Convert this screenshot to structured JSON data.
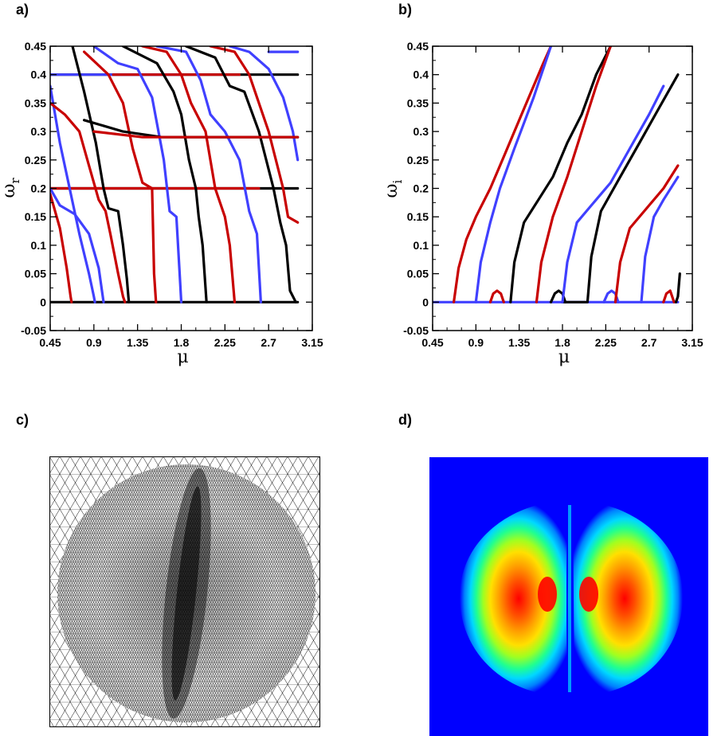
{
  "panels": {
    "a": "a)",
    "b": "b)",
    "c": "c)",
    "d": "d)"
  },
  "colors": {
    "black": "#000000",
    "red": "#c80000",
    "blue": "#4040ff",
    "field_bg": "#0000ff"
  },
  "chart_data": [
    {
      "panel": "a",
      "type": "line",
      "xlabel": "μ",
      "ylabel_base": "ω",
      "ylabel_sub": "r",
      "xlim": [
        0.45,
        3.15
      ],
      "ylim": [
        -0.05,
        0.45
      ],
      "xticks": [
        "0.45",
        "0.9",
        "1.35",
        "1.8",
        "2.25",
        "2.7",
        "3.15"
      ],
      "yticks": [
        "-0.05",
        "0",
        "0.05",
        "0.1",
        "0.15",
        "0.2",
        "0.25",
        "0.3",
        "0.35",
        "0.4",
        "0.45"
      ],
      "series": [
        {
          "color": "black",
          "points": [
            [
              0.45,
              0.0
            ],
            [
              3.0,
              0.0
            ]
          ]
        },
        {
          "color": "black",
          "points": [
            [
              0.45,
              0.2
            ],
            [
              3.0,
              0.2
            ]
          ]
        },
        {
          "color": "black",
          "points": [
            [
              0.45,
              0.4
            ],
            [
              3.0,
              0.4
            ]
          ]
        },
        {
          "color": "red",
          "points": [
            [
              0.45,
              0.2
            ],
            [
              1.2,
              0.2
            ],
            [
              2.6,
              0.2
            ]
          ]
        },
        {
          "color": "blue",
          "points": [
            [
              0.45,
              0.4
            ],
            [
              1.8,
              0.4
            ]
          ]
        },
        {
          "color": "red",
          "points": [
            [
              1.1,
              0.4
            ],
            [
              2.4,
              0.4
            ]
          ]
        },
        {
          "color": "red",
          "points": [
            [
              0.45,
              0.19
            ],
            [
              0.55,
              0.13
            ],
            [
              0.62,
              0.06
            ],
            [
              0.66,
              0.01
            ],
            [
              0.67,
              0.0
            ]
          ]
        },
        {
          "color": "blue",
          "points": [
            [
              0.45,
              0.38
            ],
            [
              0.55,
              0.28
            ],
            [
              0.65,
              0.2
            ],
            [
              0.75,
              0.12
            ],
            [
              0.85,
              0.05
            ],
            [
              0.9,
              0.01
            ],
            [
              0.91,
              0.0
            ]
          ]
        },
        {
          "color": "red",
          "points": [
            [
              0.45,
              0.35
            ],
            [
              0.6,
              0.33
            ],
            [
              0.75,
              0.3
            ],
            [
              0.85,
              0.24
            ],
            [
              0.95,
              0.18
            ],
            [
              1.02,
              0.16
            ],
            [
              1.07,
              0.12
            ],
            [
              1.15,
              0.05
            ],
            [
              1.2,
              0.01
            ],
            [
              1.22,
              0.0
            ]
          ]
        },
        {
          "color": "black",
          "points": [
            [
              0.68,
              0.45
            ],
            [
              0.8,
              0.37
            ],
            [
              0.92,
              0.28
            ],
            [
              1.0,
              0.2
            ],
            [
              1.05,
              0.165
            ],
            [
              1.15,
              0.16
            ],
            [
              1.2,
              0.1
            ],
            [
              1.24,
              0.04
            ],
            [
              1.26,
              0.0
            ]
          ]
        },
        {
          "color": "blue",
          "points": [
            [
              0.45,
              0.2
            ],
            [
              0.55,
              0.17
            ],
            [
              0.7,
              0.155
            ],
            [
              0.85,
              0.12
            ],
            [
              0.95,
              0.06
            ],
            [
              1.0,
              0.0
            ]
          ]
        },
        {
          "color": "red",
          "points": [
            [
              0.8,
              0.44
            ],
            [
              1.05,
              0.4
            ],
            [
              1.2,
              0.35
            ],
            [
              1.3,
              0.27
            ],
            [
              1.4,
              0.21
            ],
            [
              1.5,
              0.2
            ],
            [
              1.52,
              0.05
            ],
            [
              1.54,
              0.0
            ]
          ]
        },
        {
          "color": "blue",
          "points": [
            [
              0.9,
              0.45
            ],
            [
              1.15,
              0.42
            ],
            [
              1.35,
              0.41
            ],
            [
              1.5,
              0.36
            ],
            [
              1.62,
              0.25
            ],
            [
              1.68,
              0.16
            ],
            [
              1.75,
              0.15
            ],
            [
              1.78,
              0.06
            ],
            [
              1.8,
              0.0
            ]
          ]
        },
        {
          "color": "black",
          "points": [
            [
              1.2,
              0.45
            ],
            [
              1.55,
              0.42
            ],
            [
              1.72,
              0.37
            ],
            [
              1.8,
              0.33
            ],
            [
              1.88,
              0.25
            ],
            [
              1.95,
              0.2
            ],
            [
              1.98,
              0.15
            ],
            [
              2.02,
              0.1
            ],
            [
              2.06,
              0.0
            ]
          ]
        },
        {
          "color": "red",
          "points": [
            [
              1.4,
              0.45
            ],
            [
              1.65,
              0.44
            ],
            [
              1.8,
              0.4
            ],
            [
              1.9,
              0.35
            ],
            [
              2.05,
              0.3
            ],
            [
              2.15,
              0.2
            ],
            [
              2.25,
              0.15
            ],
            [
              2.3,
              0.1
            ],
            [
              2.35,
              0.0
            ]
          ]
        },
        {
          "color": "blue",
          "points": [
            [
              1.55,
              0.45
            ],
            [
              1.85,
              0.44
            ],
            [
              2.0,
              0.39
            ],
            [
              2.1,
              0.33
            ],
            [
              2.25,
              0.3
            ],
            [
              2.4,
              0.25
            ],
            [
              2.5,
              0.16
            ],
            [
              2.58,
              0.12
            ],
            [
              2.62,
              0.0
            ]
          ]
        },
        {
          "color": "black",
          "points": [
            [
              1.85,
              0.45
            ],
            [
              2.15,
              0.43
            ],
            [
              2.3,
              0.38
            ],
            [
              2.45,
              0.37
            ],
            [
              2.6,
              0.3
            ],
            [
              2.75,
              0.2
            ],
            [
              2.82,
              0.14
            ],
            [
              2.88,
              0.1
            ],
            [
              2.92,
              0.02
            ],
            [
              2.98,
              0.0
            ]
          ]
        },
        {
          "color": "red",
          "points": [
            [
              2.1,
              0.45
            ],
            [
              2.35,
              0.44
            ],
            [
              2.5,
              0.4
            ],
            [
              2.7,
              0.3
            ],
            [
              2.85,
              0.2
            ],
            [
              2.9,
              0.15
            ],
            [
              3.0,
              0.14
            ]
          ]
        },
        {
          "color": "blue",
          "points": [
            [
              2.3,
              0.45
            ],
            [
              2.5,
              0.44
            ],
            [
              2.7,
              0.41
            ],
            [
              2.85,
              0.36
            ],
            [
              2.95,
              0.3
            ],
            [
              3.0,
              0.25
            ]
          ]
        },
        {
          "color": "black",
          "points": [
            [
              0.8,
              0.32
            ],
            [
              1.2,
              0.3
            ],
            [
              1.6,
              0.29
            ],
            [
              2.0,
              0.29
            ],
            [
              2.4,
              0.29
            ],
            [
              3.0,
              0.29
            ]
          ]
        },
        {
          "color": "red",
          "points": [
            [
              0.9,
              0.3
            ],
            [
              1.4,
              0.29
            ],
            [
              2.0,
              0.29
            ],
            [
              3.0,
              0.29
            ]
          ]
        },
        {
          "color": "blue",
          "points": [
            [
              2.7,
              0.44
            ],
            [
              3.0,
              0.44
            ]
          ]
        }
      ]
    },
    {
      "panel": "b",
      "type": "line",
      "xlabel": "μ",
      "ylabel_base": "ω",
      "ylabel_sub": "i",
      "xlim": [
        0.45,
        3.15
      ],
      "ylim": [
        -0.05,
        0.45
      ],
      "xticks": [
        "0.45",
        "0.9",
        "1.35",
        "1.8",
        "2.25",
        "2.7",
        "3.15"
      ],
      "yticks": [
        "-0.05",
        "0",
        "0.05",
        "0.1",
        "0.15",
        "0.2",
        "0.25",
        "0.3",
        "0.35",
        "0.4",
        "0.45"
      ],
      "series": [
        {
          "color": "blue",
          "points": [
            [
              0.45,
              0.0
            ],
            [
              3.0,
              0.0
            ]
          ]
        },
        {
          "color": "red",
          "points": [
            [
              0.67,
              0.0
            ],
            [
              0.72,
              0.06
            ],
            [
              0.8,
              0.11
            ],
            [
              0.9,
              0.15
            ],
            [
              1.05,
              0.2
            ],
            [
              1.2,
              0.26
            ],
            [
              1.4,
              0.34
            ],
            [
              1.6,
              0.42
            ],
            [
              1.68,
              0.45
            ]
          ]
        },
        {
          "color": "blue",
          "points": [
            [
              0.9,
              0.0
            ],
            [
              0.95,
              0.07
            ],
            [
              1.05,
              0.14
            ],
            [
              1.15,
              0.2
            ],
            [
              1.3,
              0.27
            ],
            [
              1.5,
              0.36
            ],
            [
              1.68,
              0.45
            ]
          ]
        },
        {
          "color": "red",
          "points": [
            [
              1.05,
              0.0
            ],
            [
              1.08,
              0.015
            ],
            [
              1.12,
              0.02
            ],
            [
              1.16,
              0.015
            ],
            [
              1.19,
              0.0
            ]
          ]
        },
        {
          "color": "black",
          "points": [
            [
              1.26,
              0.0
            ],
            [
              1.3,
              0.07
            ],
            [
              1.4,
              0.14
            ],
            [
              1.55,
              0.18
            ],
            [
              1.7,
              0.22
            ],
            [
              1.85,
              0.28
            ],
            [
              2.0,
              0.33
            ],
            [
              2.15,
              0.4
            ],
            [
              2.3,
              0.45
            ]
          ]
        },
        {
          "color": "red",
          "points": [
            [
              1.53,
              0.0
            ],
            [
              1.58,
              0.07
            ],
            [
              1.7,
              0.15
            ],
            [
              1.85,
              0.22
            ],
            [
              2.0,
              0.3
            ],
            [
              2.15,
              0.38
            ],
            [
              2.3,
              0.45
            ]
          ]
        },
        {
          "color": "black",
          "points": [
            [
              1.68,
              0.0
            ],
            [
              1.72,
              0.015
            ],
            [
              1.76,
              0.02
            ],
            [
              1.8,
              0.015
            ],
            [
              1.83,
              0.0
            ]
          ]
        },
        {
          "color": "black",
          "points": [
            [
              1.8,
              0.0
            ],
            [
              2.06,
              0.0
            ],
            [
              2.1,
              0.08
            ],
            [
              2.2,
              0.16
            ],
            [
              2.4,
              0.22
            ],
            [
              2.6,
              0.28
            ],
            [
              2.8,
              0.34
            ],
            [
              3.0,
              0.4
            ]
          ]
        },
        {
          "color": "blue",
          "points": [
            [
              1.8,
              0.0
            ],
            [
              1.85,
              0.07
            ],
            [
              1.95,
              0.14
            ],
            [
              2.1,
              0.17
            ],
            [
              2.3,
              0.21
            ],
            [
              2.5,
              0.27
            ],
            [
              2.7,
              0.33
            ],
            [
              2.85,
              0.38
            ]
          ]
        },
        {
          "color": "blue",
          "points": [
            [
              2.23,
              0.0
            ],
            [
              2.27,
              0.015
            ],
            [
              2.31,
              0.02
            ],
            [
              2.35,
              0.015
            ],
            [
              2.38,
              0.0
            ]
          ]
        },
        {
          "color": "red",
          "points": [
            [
              2.35,
              0.0
            ],
            [
              2.4,
              0.07
            ],
            [
              2.5,
              0.13
            ],
            [
              2.7,
              0.17
            ],
            [
              2.85,
              0.2
            ],
            [
              3.0,
              0.24
            ]
          ]
        },
        {
          "color": "blue",
          "points": [
            [
              2.62,
              0.0
            ],
            [
              2.66,
              0.08
            ],
            [
              2.75,
              0.15
            ],
            [
              2.85,
              0.18
            ],
            [
              3.0,
              0.22
            ]
          ]
        },
        {
          "color": "red",
          "points": [
            [
              2.85,
              0.0
            ],
            [
              2.88,
              0.015
            ],
            [
              2.92,
              0.02
            ],
            [
              2.96,
              0.0
            ]
          ]
        },
        {
          "color": "black",
          "points": [
            [
              2.98,
              0.0
            ],
            [
              3.0,
              0.01
            ],
            [
              3.02,
              0.05
            ]
          ]
        }
      ]
    }
  ]
}
